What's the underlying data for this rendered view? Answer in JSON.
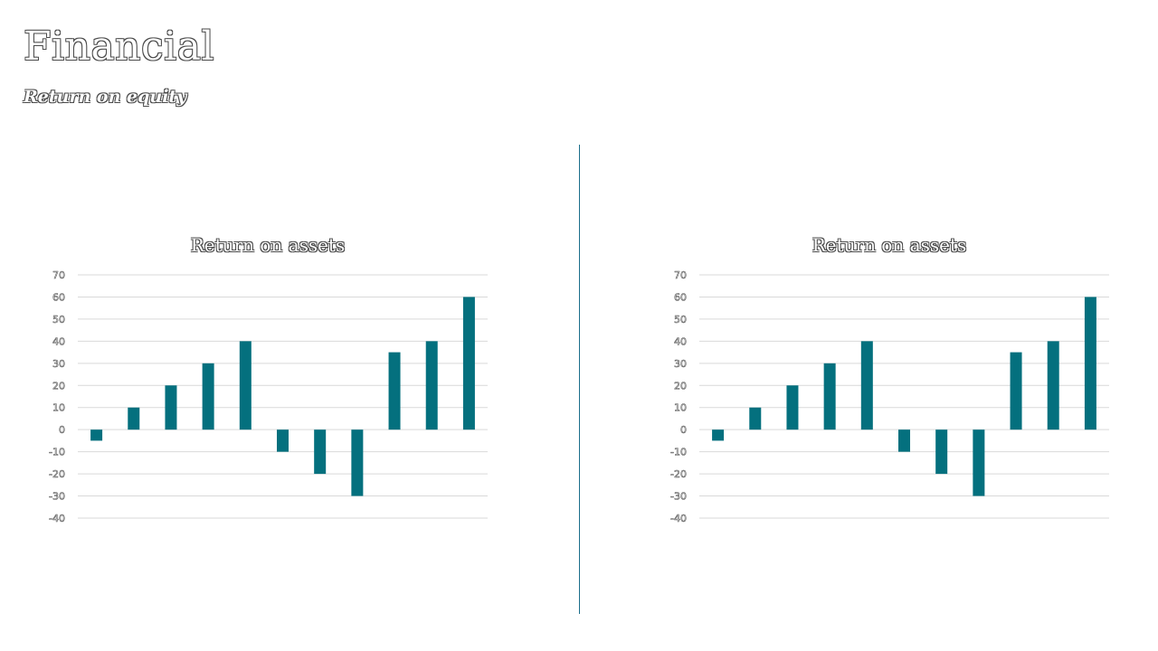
{
  "page": {
    "title": "Financial",
    "subtitle": "Return on equity"
  },
  "colors": {
    "bar": "#04707e",
    "grid": "#d9d9d9",
    "divider": "#1a6e8a"
  },
  "chart_data": [
    {
      "type": "bar",
      "title": "Return on assets",
      "categories": [
        "",
        "",
        "",
        "",
        "",
        "",
        "",
        "",
        "",
        "",
        ""
      ],
      "values": [
        -5,
        10,
        20,
        30,
        40,
        -10,
        -20,
        -30,
        35,
        40,
        60
      ],
      "ylim": [
        -40,
        70
      ],
      "yticks": [
        70,
        60,
        50,
        40,
        30,
        20,
        10,
        0,
        -10,
        -20,
        -30,
        -40
      ],
      "grid": true,
      "legend": "none"
    },
    {
      "type": "bar",
      "title": "Return on assets",
      "categories": [
        "",
        "",
        "",
        "",
        "",
        "",
        "",
        "",
        "",
        "",
        ""
      ],
      "values": [
        -5,
        10,
        20,
        30,
        40,
        -10,
        -20,
        -30,
        35,
        40,
        60
      ],
      "ylim": [
        -40,
        70
      ],
      "yticks": [
        70,
        60,
        50,
        40,
        30,
        20,
        10,
        0,
        -10,
        -20,
        -30,
        -40
      ],
      "grid": true,
      "legend": "none"
    }
  ]
}
